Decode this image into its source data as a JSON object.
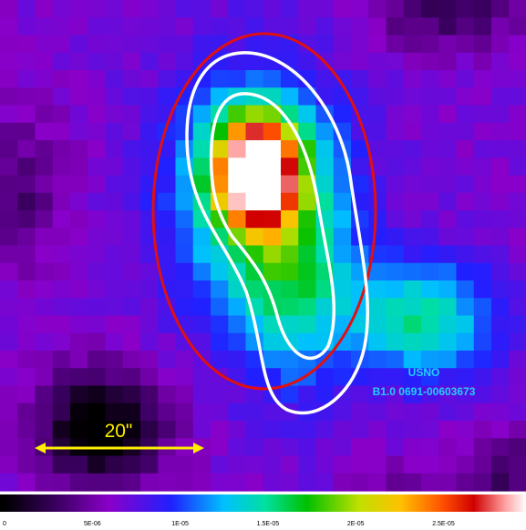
{
  "image": {
    "scale_label": "20\"",
    "source_label": [
      "USNO",
      "B1.0 0691-00603673"
    ]
  },
  "colorbar": {
    "range": [
      0,
      2.97e-05
    ],
    "ticks": [
      0,
      {
        "value": 5e-06,
        "label": "5E-06"
      },
      {
        "value": 1e-05,
        "label": "1E-05"
      },
      {
        "value": 1.5e-05,
        "label": "1.5E-05"
      },
      {
        "value": 2e-05,
        "label": "2E-05"
      },
      {
        "value": 2.5e-05,
        "label": "2.5E-05"
      }
    ]
  }
}
